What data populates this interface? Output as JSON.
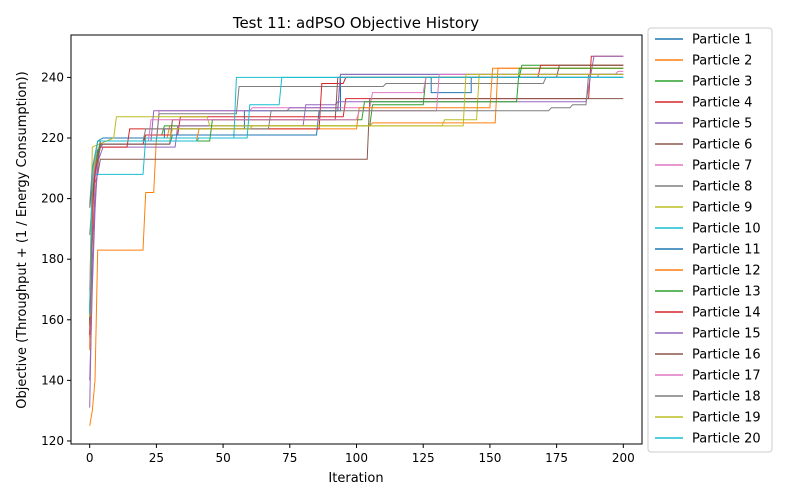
{
  "chart_data": {
    "type": "line",
    "title": "Test 11: adPSO Objective History",
    "xlabel": "Iteration",
    "ylabel": "Objective (Throughput + (1 / Energy Consumption))",
    "xlim": [
      -7,
      207
    ],
    "ylim": [
      119,
      254
    ],
    "xticks": [
      0,
      25,
      50,
      75,
      100,
      125,
      150,
      175,
      200
    ],
    "yticks": [
      120,
      140,
      160,
      180,
      200,
      220,
      240
    ],
    "legend": "right-outside",
    "grid": false,
    "series": [
      {
        "name": "Particle 1",
        "color": "#1f77b4",
        "points": [
          [
            0,
            160
          ],
          [
            1,
            205
          ],
          [
            2,
            212
          ],
          [
            3,
            219
          ],
          [
            5,
            220
          ],
          [
            28,
            220
          ],
          [
            28,
            223
          ],
          [
            58,
            223
          ],
          [
            58,
            229
          ],
          [
            94,
            229
          ],
          [
            94,
            240
          ],
          [
            128,
            240
          ],
          [
            128,
            235
          ],
          [
            143,
            235
          ],
          [
            143,
            240
          ],
          [
            200,
            240
          ]
        ]
      },
      {
        "name": "Particle 2",
        "color": "#ff7f0e",
        "points": [
          [
            0,
            125
          ],
          [
            1,
            130
          ],
          [
            2,
            140
          ],
          [
            3,
            183
          ],
          [
            20,
            183
          ],
          [
            21,
            202
          ],
          [
            24,
            202
          ],
          [
            25,
            220
          ],
          [
            29,
            220
          ],
          [
            30,
            224
          ],
          [
            105,
            224
          ],
          [
            106,
            225
          ],
          [
            152,
            225
          ],
          [
            153,
            243
          ],
          [
            200,
            243
          ]
        ]
      },
      {
        "name": "Particle 3",
        "color": "#2ca02c",
        "points": [
          [
            0,
            159
          ],
          [
            1,
            197
          ],
          [
            2,
            208
          ],
          [
            4,
            219
          ],
          [
            20,
            219
          ],
          [
            21,
            221
          ],
          [
            27,
            221
          ],
          [
            28,
            224
          ],
          [
            105,
            224
          ],
          [
            106,
            231
          ],
          [
            125,
            231
          ],
          [
            126,
            240
          ],
          [
            161,
            240
          ],
          [
            162,
            244
          ],
          [
            200,
            244
          ]
        ]
      },
      {
        "name": "Particle 4",
        "color": "#d62728",
        "points": [
          [
            0,
            162
          ],
          [
            1,
            198
          ],
          [
            2,
            208
          ],
          [
            4,
            218
          ],
          [
            20,
            218
          ],
          [
            21,
            221
          ],
          [
            33,
            221
          ],
          [
            34,
            227
          ],
          [
            95,
            227
          ],
          [
            96,
            233
          ],
          [
            187,
            233
          ],
          [
            188,
            247
          ],
          [
            200,
            247
          ]
        ]
      },
      {
        "name": "Particle 5",
        "color": "#9467bd",
        "points": [
          [
            0,
            140
          ],
          [
            1,
            170
          ],
          [
            2,
            196
          ],
          [
            3,
            212
          ],
          [
            5,
            217
          ],
          [
            32,
            217
          ],
          [
            33,
            224
          ],
          [
            80,
            224
          ],
          [
            81,
            231
          ],
          [
            92,
            231
          ],
          [
            93,
            232
          ],
          [
            186,
            232
          ],
          [
            189,
            247
          ],
          [
            200,
            247
          ]
        ]
      },
      {
        "name": "Particle 6",
        "color": "#8c564b",
        "points": [
          [
            0,
            154
          ],
          [
            1,
            185
          ],
          [
            2,
            205
          ],
          [
            3,
            208
          ],
          [
            4,
            213
          ],
          [
            104,
            213
          ],
          [
            105,
            233
          ],
          [
            200,
            233
          ]
        ]
      },
      {
        "name": "Particle 7",
        "color": "#e377c2",
        "points": [
          [
            0,
            151
          ],
          [
            1,
            190
          ],
          [
            2,
            206
          ],
          [
            4,
            219
          ],
          [
            25,
            219
          ],
          [
            26,
            229
          ],
          [
            60,
            229
          ],
          [
            61,
            230
          ],
          [
            105,
            230
          ],
          [
            106,
            235
          ],
          [
            125,
            235
          ],
          [
            126,
            240
          ],
          [
            190,
            240
          ],
          [
            191,
            241
          ],
          [
            197,
            241
          ],
          [
            198,
            242
          ],
          [
            200,
            242
          ]
        ]
      },
      {
        "name": "Particle 8",
        "color": "#7f7f7f",
        "points": [
          [
            0,
            188
          ],
          [
            1,
            200
          ],
          [
            2,
            209
          ],
          [
            4,
            219
          ],
          [
            25,
            219
          ],
          [
            26,
            228
          ],
          [
            55,
            228
          ],
          [
            56,
            237
          ],
          [
            110,
            237
          ],
          [
            111,
            238
          ],
          [
            170,
            238
          ],
          [
            171,
            240
          ],
          [
            200,
            240
          ]
        ]
      },
      {
        "name": "Particle 9",
        "color": "#bcbd22",
        "points": [
          [
            0,
            165
          ],
          [
            1,
            217
          ],
          [
            9,
            220
          ],
          [
            10,
            227
          ],
          [
            44,
            227
          ],
          [
            45,
            224
          ],
          [
            132,
            224
          ],
          [
            133,
            226
          ],
          [
            145,
            226
          ],
          [
            146,
            241
          ],
          [
            200,
            241
          ]
        ]
      },
      {
        "name": "Particle 10",
        "color": "#17becf",
        "points": [
          [
            0,
            160
          ],
          [
            1,
            208
          ],
          [
            20,
            208
          ],
          [
            21,
            220
          ],
          [
            54,
            220
          ],
          [
            55,
            240
          ],
          [
            200,
            240
          ]
        ]
      },
      {
        "name": "Particle 11",
        "color": "#1f77b4",
        "points": [
          [
            0,
            163
          ],
          [
            1,
            202
          ],
          [
            3,
            216
          ],
          [
            5,
            218
          ],
          [
            30,
            218
          ],
          [
            31,
            221
          ],
          [
            85,
            221
          ],
          [
            86,
            229
          ],
          [
            93,
            229
          ],
          [
            94,
            241
          ],
          [
            200,
            241
          ]
        ]
      },
      {
        "name": "Particle 12",
        "color": "#ff7f0e",
        "points": [
          [
            0,
            150
          ],
          [
            1,
            195
          ],
          [
            2,
            210
          ],
          [
            4,
            219
          ],
          [
            40,
            219
          ],
          [
            41,
            223
          ],
          [
            100,
            223
          ],
          [
            101,
            230
          ],
          [
            150,
            230
          ],
          [
            151,
            243
          ],
          [
            200,
            243
          ]
        ]
      },
      {
        "name": "Particle 13",
        "color": "#2ca02c",
        "points": [
          [
            0,
            158
          ],
          [
            1,
            199
          ],
          [
            2,
            211
          ],
          [
            4,
            219
          ],
          [
            45,
            219
          ],
          [
            46,
            226
          ],
          [
            102,
            226
          ],
          [
            103,
            232
          ],
          [
            160,
            232
          ],
          [
            161,
            243
          ],
          [
            200,
            243
          ]
        ]
      },
      {
        "name": "Particle 14",
        "color": "#d62728",
        "points": [
          [
            0,
            155
          ],
          [
            1,
            196
          ],
          [
            2,
            209
          ],
          [
            4,
            217
          ],
          [
            14,
            217
          ],
          [
            15,
            223
          ],
          [
            86,
            223
          ],
          [
            87,
            238
          ],
          [
            95,
            238
          ],
          [
            96,
            240
          ],
          [
            168,
            240
          ],
          [
            169,
            244
          ],
          [
            200,
            244
          ]
        ]
      },
      {
        "name": "Particle 15",
        "color": "#9467bd",
        "points": [
          [
            0,
            131
          ],
          [
            1,
            175
          ],
          [
            2,
            200
          ],
          [
            4,
            219
          ],
          [
            23,
            219
          ],
          [
            24,
            229
          ],
          [
            74,
            229
          ],
          [
            75,
            230
          ],
          [
            93,
            230
          ],
          [
            94,
            241
          ],
          [
            200,
            241
          ]
        ]
      },
      {
        "name": "Particle 16",
        "color": "#8c564b",
        "points": [
          [
            0,
            197
          ],
          [
            1,
            205
          ],
          [
            2,
            208
          ],
          [
            4,
            218
          ],
          [
            30,
            218
          ],
          [
            31,
            226
          ],
          [
            92,
            226
          ],
          [
            93,
            240
          ],
          [
            175,
            240
          ],
          [
            176,
            244
          ],
          [
            200,
            244
          ]
        ]
      },
      {
        "name": "Particle 17",
        "color": "#e377c2",
        "points": [
          [
            0,
            170
          ],
          [
            1,
            204
          ],
          [
            3,
            219
          ],
          [
            22,
            219
          ],
          [
            23,
            226
          ],
          [
            100,
            226
          ],
          [
            101,
            229
          ],
          [
            130,
            229
          ],
          [
            131,
            241
          ],
          [
            200,
            241
          ]
        ]
      },
      {
        "name": "Particle 18",
        "color": "#7f7f7f",
        "points": [
          [
            0,
            198
          ],
          [
            1,
            210
          ],
          [
            3,
            219
          ],
          [
            20,
            219
          ],
          [
            21,
            223
          ],
          [
            67,
            223
          ],
          [
            68,
            229
          ],
          [
            172,
            229
          ],
          [
            173,
            230
          ],
          [
            180,
            230
          ],
          [
            181,
            231
          ],
          [
            186,
            231
          ],
          [
            187,
            241
          ],
          [
            200,
            241
          ]
        ]
      },
      {
        "name": "Particle 19",
        "color": "#bcbd22",
        "points": [
          [
            0,
            161
          ],
          [
            1,
            207
          ],
          [
            3,
            219
          ],
          [
            30,
            219
          ],
          [
            31,
            223
          ],
          [
            60,
            223
          ],
          [
            61,
            224
          ],
          [
            140,
            224
          ],
          [
            141,
            241
          ],
          [
            200,
            241
          ]
        ]
      },
      {
        "name": "Particle 20",
        "color": "#17becf",
        "points": [
          [
            0,
            162
          ],
          [
            1,
            209
          ],
          [
            3,
            219
          ],
          [
            40,
            219
          ],
          [
            41,
            220
          ],
          [
            59,
            220
          ],
          [
            60,
            231
          ],
          [
            71,
            231
          ],
          [
            72,
            240
          ],
          [
            200,
            240
          ]
        ]
      }
    ]
  }
}
